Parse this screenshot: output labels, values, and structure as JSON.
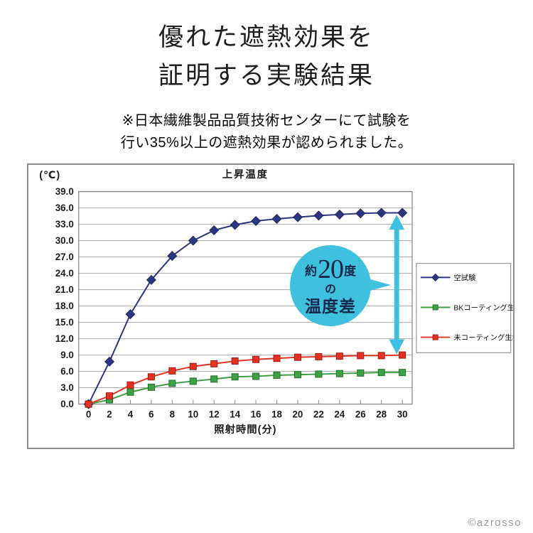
{
  "header": {
    "title_line1": "優れた遮熱効果を",
    "title_line2": "証明する実験結果",
    "note_line1": "※日本繊維製品品質技術センターにて試験を",
    "note_line2": "行い35%以上の遮熱効果が認められました。"
  },
  "footer": {
    "copyright": "©azrosso"
  },
  "chart_data": {
    "type": "line",
    "title": "上昇温度",
    "y_unit_label": "(℃)",
    "xlabel": "照射時間(分)",
    "ylabel": "",
    "ylim": [
      0,
      39
    ],
    "ytick_step": 3,
    "grid": true,
    "legend_position": "right",
    "x": [
      0,
      2,
      4,
      6,
      8,
      10,
      12,
      14,
      16,
      18,
      20,
      22,
      24,
      26,
      28,
      30
    ],
    "series": [
      {
        "id": "blank-test",
        "name": "空試験",
        "color": "#2a3680",
        "edge": "#1c2458",
        "marker": "diamond",
        "values": [
          0.0,
          7.8,
          16.5,
          22.8,
          27.2,
          30.0,
          31.9,
          32.9,
          33.6,
          34.0,
          34.3,
          34.6,
          34.8,
          35.0,
          35.1,
          35.1
        ]
      },
      {
        "id": "bk-coated-fabric",
        "name": "BKコーティング生地",
        "color": "#3fa046",
        "edge": "#1e6b24",
        "marker": "square",
        "values": [
          0.0,
          0.8,
          2.2,
          3.1,
          3.8,
          4.2,
          4.6,
          5.0,
          5.1,
          5.3,
          5.4,
          5.5,
          5.6,
          5.7,
          5.8,
          5.8
        ]
      },
      {
        "id": "uncoated-fabric",
        "name": "未コーティング生地",
        "color": "#e23222",
        "edge": "#9c1710",
        "marker": "square",
        "values": [
          0.0,
          1.5,
          3.5,
          5.0,
          6.1,
          6.9,
          7.4,
          7.9,
          8.2,
          8.4,
          8.6,
          8.7,
          8.8,
          8.9,
          8.9,
          9.0
        ]
      }
    ],
    "annotation": {
      "prefix": "約",
      "number": "20",
      "suffix": "度",
      "middle": "の",
      "bottom": "温度差",
      "bubble_color": "#3fc0df",
      "text_color": "#17294a"
    }
  }
}
